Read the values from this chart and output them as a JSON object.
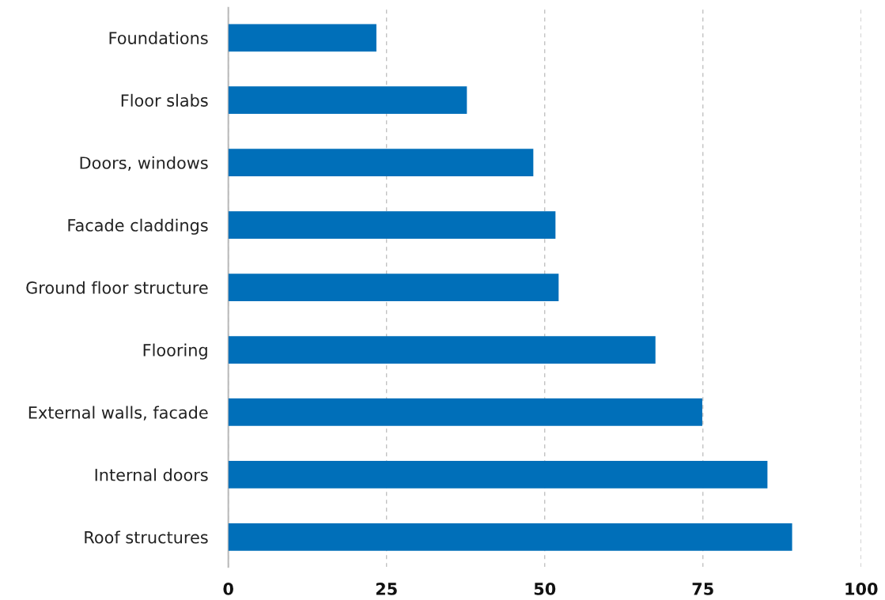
{
  "chart_data": {
    "type": "bar",
    "orientation": "horizontal",
    "categories": [
      "Foundations",
      "Floor slabs",
      "Doors, windows",
      "Facade claddings",
      "Ground floor structure",
      "Flooring",
      "External walls, facade",
      "Internal doors",
      "Roof structures"
    ],
    "values": [
      23.4,
      37.7,
      48.2,
      51.7,
      52.2,
      67.5,
      74.9,
      85.2,
      89.1
    ],
    "color": "#006fb9",
    "xlim": [
      0,
      100
    ],
    "xticks": [
      0,
      25,
      50,
      75,
      100
    ],
    "grid": "x"
  }
}
